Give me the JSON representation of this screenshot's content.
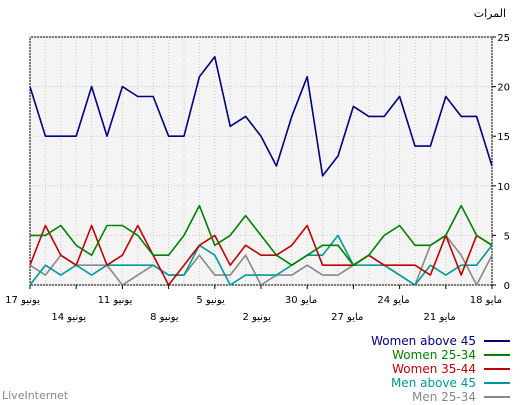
{
  "footer": {
    "brand": "LiveInternet"
  },
  "chart_data": {
    "type": "line",
    "ylabel": "المرات",
    "ylim": [
      0,
      25
    ],
    "yticks": [
      0,
      5,
      10,
      15,
      20,
      25
    ],
    "grid": true,
    "legend_position": "bottom-right",
    "x": [
      "18 مايو",
      "19 مايو",
      "20 مايو",
      "21 مايو",
      "22 مايو",
      "23 مايو",
      "24 مايو",
      "25 مايو",
      "26 مايو",
      "27 مايو",
      "28 مايو",
      "29 مايو",
      "30 مايو",
      "31 مايو",
      "1 يونيو",
      "2 يونيو",
      "3 يونيو",
      "4 يونيو",
      "5 يونيو",
      "6 يونيو",
      "7 يونيو",
      "8 يونيو",
      "9 يونيو",
      "10 يونيو",
      "11 يونيو",
      "12 يونيو",
      "13 يونيو",
      "14 يونيو",
      "15 يونيو",
      "16 يونيو",
      "17 يونيو"
    ],
    "xticks": [
      {
        "index": 0,
        "label": "18 مايو",
        "row": 1
      },
      {
        "index": 3,
        "label": "21 مايو",
        "row": 2
      },
      {
        "index": 6,
        "label": "24 مايو",
        "row": 1
      },
      {
        "index": 9,
        "label": "27 مايو",
        "row": 2
      },
      {
        "index": 12,
        "label": "30 مايو",
        "row": 1
      },
      {
        "index": 15,
        "label": "2 يونيو",
        "row": 2
      },
      {
        "index": 18,
        "label": "5 يونيو",
        "row": 1
      },
      {
        "index": 21,
        "label": "8 يونيو",
        "row": 2
      },
      {
        "index": 24,
        "label": "11 يونيو",
        "row": 1
      },
      {
        "index": 27,
        "label": "14 يونيو",
        "row": 2
      },
      {
        "index": 30,
        "label": "17 يونيو",
        "row": 1
      }
    ],
    "series": [
      {
        "name": "Women above 45",
        "color": "#000080",
        "values": [
          12,
          17,
          17,
          19,
          14,
          14,
          19,
          17,
          17,
          18,
          13,
          11,
          21,
          17,
          12,
          15,
          17,
          16,
          23,
          21,
          15,
          15,
          19,
          19,
          20,
          15,
          20,
          15,
          15,
          15,
          20
        ]
      },
      {
        "name": "Women 25-34",
        "color": "#008000",
        "values": [
          4,
          5,
          8,
          5,
          4,
          4,
          6,
          5,
          3,
          2,
          4,
          4,
          3,
          2,
          3,
          5,
          7,
          5,
          4,
          8,
          5,
          3,
          3,
          5,
          6,
          6,
          3,
          4,
          6,
          5,
          5
        ]
      },
      {
        "name": "Women 35-44",
        "color": "#c00000",
        "values": [
          4,
          5,
          1,
          5,
          1,
          2,
          2,
          2,
          3,
          2,
          2,
          2,
          6,
          4,
          3,
          3,
          4,
          2,
          5,
          4,
          2,
          0,
          3,
          6,
          3,
          2,
          6,
          2,
          3,
          6,
          2
        ]
      },
      {
        "name": "Men above 45",
        "color": "#009999",
        "values": [
          4,
          2,
          2,
          1,
          2,
          0,
          1,
          2,
          2,
          2,
          5,
          3,
          3,
          2,
          1,
          1,
          1,
          0,
          3,
          4,
          1,
          1,
          2,
          2,
          2,
          2,
          1,
          2,
          1,
          2,
          0
        ]
      },
      {
        "name": "Men 25-34",
        "color": "#888888",
        "values": [
          3,
          0,
          3,
          5,
          4,
          0,
          1,
          2,
          3,
          2,
          1,
          1,
          2,
          1,
          1,
          0,
          3,
          1,
          1,
          3,
          1,
          1,
          2,
          1,
          0,
          2,
          2,
          2,
          3,
          1,
          2
        ]
      }
    ]
  }
}
